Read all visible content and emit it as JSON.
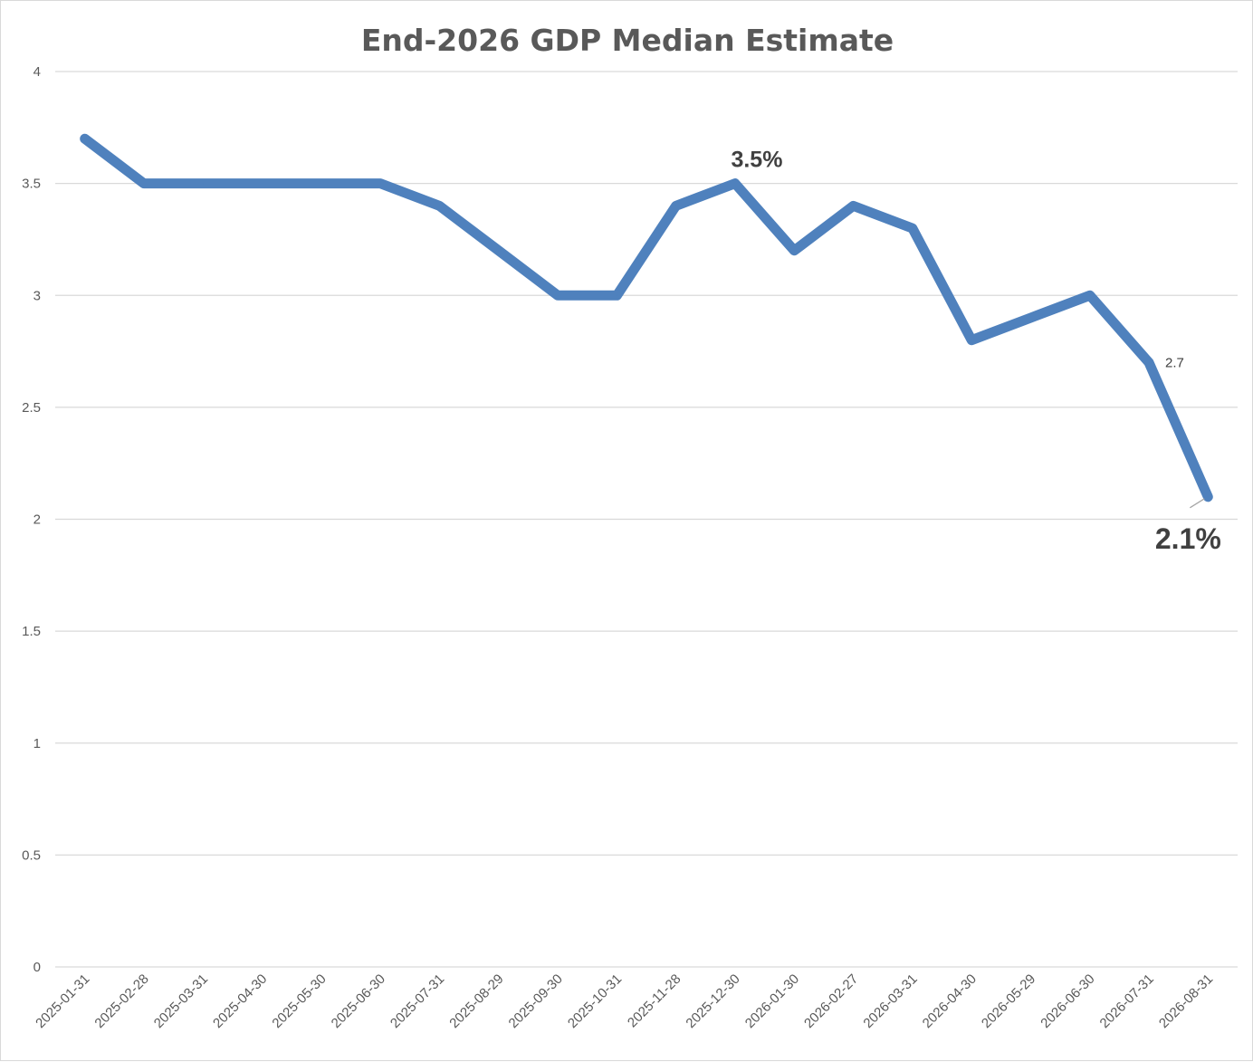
{
  "chart_data": {
    "type": "line",
    "title": "End-2026 GDP Median Estimate",
    "xlabel": "",
    "ylabel": "",
    "ylim": [
      0,
      4
    ],
    "yticks": [
      "0",
      "0.5",
      "1",
      "1.5",
      "2",
      "2.5",
      "3",
      "3.5",
      "4"
    ],
    "grid": true,
    "legend": "none",
    "x": [
      "2025-01-31",
      "2025-02-28",
      "2025-03-31",
      "2025-04-30",
      "2025-05-30",
      "2025-06-30",
      "2025-07-31",
      "2025-08-29",
      "2025-09-30",
      "2025-10-31",
      "2025-11-28",
      "2025-12-30",
      "2026-01-30",
      "2026-02-27",
      "2026-03-31",
      "2026-04-30",
      "2026-05-29",
      "2026-06-30",
      "2026-07-31",
      "2026-08-31"
    ],
    "series": [
      {
        "values": [
          3.7,
          3.5,
          3.5,
          3.5,
          3.5,
          3.5,
          3.4,
          3.2,
          3.0,
          3.0,
          3.4,
          3.5,
          3.2,
          3.4,
          3.3,
          2.8,
          2.9,
          3.0,
          2.7,
          2.1
        ],
        "color": "#4f81bd"
      }
    ],
    "annotations": [
      {
        "text": "3.5%",
        "x": "2025-12-30",
        "y": 3.5,
        "style": "big"
      },
      {
        "text": "2.7",
        "x": "2026-07-31",
        "y": 2.7,
        "style": "small"
      },
      {
        "text": "2.1%",
        "x": "2026-08-31",
        "y": 2.1,
        "style": "huge"
      }
    ]
  }
}
